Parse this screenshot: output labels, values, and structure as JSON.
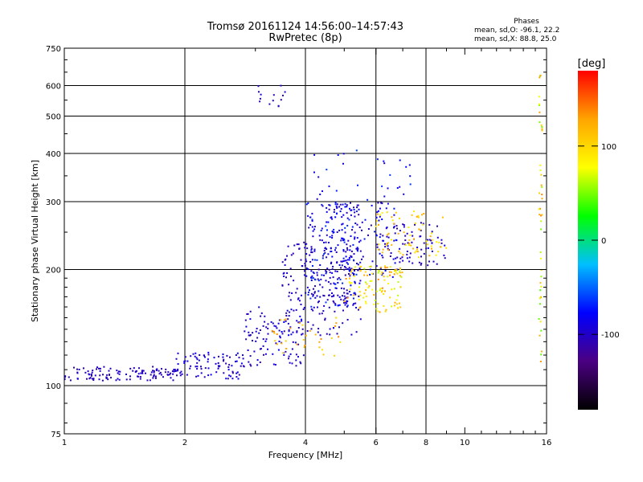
{
  "header": {
    "title_line1": "Tromsø 20161124 14:56:00–14:57:43",
    "title_line2": "RwPretec (8p)"
  },
  "phases_box": {
    "title": "Phases",
    "line_o": "mean, sd,O: -96.1, 22.2",
    "line_x": "mean, sd,X:  88.8, 25.0"
  },
  "chart_data": {
    "type": "scatter",
    "xlabel": "Frequency [MHz]",
    "ylabel": "Stationary phase Virtual Height [km]",
    "x_scale": "log",
    "y_scale": "log",
    "xlim": [
      1,
      16
    ],
    "ylim": [
      75,
      750
    ],
    "x_ticks": [
      1,
      2,
      4,
      6,
      8,
      10,
      16
    ],
    "y_ticks": [
      75,
      100,
      200,
      300,
      400,
      500,
      600,
      750
    ],
    "grid_x": [
      2,
      4,
      6,
      8
    ],
    "grid_y": [
      100,
      200,
      300,
      400,
      500,
      600
    ],
    "colorbar": {
      "label": "[deg]",
      "range": [
        -180,
        180
      ],
      "ticks": [
        100,
        0,
        -100
      ],
      "colors": [
        "#000000",
        "#4b0082",
        "#0000ff",
        "#00bfff",
        "#00ff00",
        "#ffff00",
        "#ffa500",
        "#ff0000"
      ]
    },
    "clusters": [
      {
        "x0": 1.0,
        "x1": 1.9,
        "y0": 103,
        "y1": 112,
        "phase": [
          -110,
          -95
        ],
        "n": 120
      },
      {
        "x0": 1.9,
        "x1": 2.8,
        "y0": 104,
        "y1": 122,
        "phase": [
          -110,
          -80
        ],
        "n": 90
      },
      {
        "x0": 2.8,
        "x1": 4.0,
        "y0": 112,
        "y1": 160,
        "phase": [
          -110,
          -80
        ],
        "n": 110
      },
      {
        "x0": 3.5,
        "x1": 5.5,
        "y0": 135,
        "y1": 240,
        "phase": [
          -110,
          -90
        ],
        "n": 180
      },
      {
        "x0": 4.0,
        "x1": 5.5,
        "y0": 160,
        "y1": 300,
        "phase": [
          -105,
          -60
        ],
        "n": 200
      },
      {
        "x0": 4.5,
        "x1": 6.8,
        "y0": 190,
        "y1": 300,
        "phase": [
          -110,
          -70
        ],
        "n": 110
      },
      {
        "x0": 5.0,
        "x1": 7.0,
        "y0": 155,
        "y1": 205,
        "phase": [
          60,
          140
        ],
        "n": 110
      },
      {
        "x0": 6.0,
        "x1": 9.0,
        "y0": 205,
        "y1": 265,
        "phase": [
          -110,
          -90
        ],
        "n": 80
      },
      {
        "x0": 6.0,
        "x1": 9.0,
        "y0": 215,
        "y1": 285,
        "phase": [
          80,
          130
        ],
        "n": 70
      },
      {
        "x0": 3.3,
        "x1": 5.0,
        "y0": 118,
        "y1": 150,
        "phase": [
          90,
          140
        ],
        "n": 35
      },
      {
        "x0": 4.0,
        "x1": 7.5,
        "y0": 300,
        "y1": 420,
        "phase": [
          -100,
          -60
        ],
        "n": 30
      },
      {
        "x0": 3.0,
        "x1": 3.6,
        "y0": 530,
        "y1": 600,
        "phase": [
          -110,
          -90
        ],
        "n": 14
      },
      {
        "x0": 15.3,
        "x1": 15.6,
        "y0": 110,
        "y1": 640,
        "phase": [
          40,
          140
        ],
        "n": 45
      }
    ]
  }
}
